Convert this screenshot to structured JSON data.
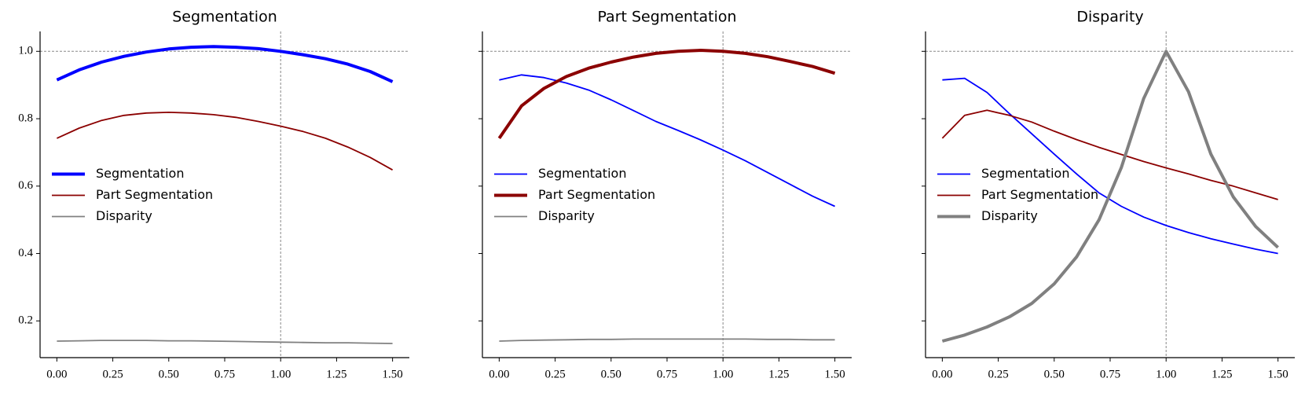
{
  "chart_data": [
    {
      "type": "line",
      "title": "Segmentation",
      "x": [
        0,
        0.1,
        0.2,
        0.3,
        0.4,
        0.5,
        0.6,
        0.7,
        0.8,
        0.9,
        1.0,
        1.1,
        1.2,
        1.3,
        1.4,
        1.5
      ],
      "series": [
        {
          "name": "Segmentation",
          "color": "#0000ff",
          "linewidth": 4,
          "values": [
            0.915,
            0.945,
            0.968,
            0.985,
            0.998,
            1.007,
            1.012,
            1.014,
            1.012,
            1.008,
            1.0,
            0.99,
            0.978,
            0.962,
            0.94,
            0.91
          ]
        },
        {
          "name": "Part Segmentation",
          "color": "#8b0000",
          "linewidth": 1.8,
          "values": [
            0.742,
            0.772,
            0.795,
            0.81,
            0.817,
            0.819,
            0.817,
            0.812,
            0.804,
            0.792,
            0.778,
            0.762,
            0.742,
            0.716,
            0.685,
            0.648
          ]
        },
        {
          "name": "Disparity",
          "color": "#808080",
          "linewidth": 1.8,
          "values": [
            0.14,
            0.141,
            0.142,
            0.142,
            0.142,
            0.141,
            0.141,
            0.14,
            0.139,
            0.138,
            0.137,
            0.136,
            0.135,
            0.135,
            0.134,
            0.133
          ]
        }
      ],
      "xlim": [
        -0.075,
        1.575
      ],
      "ylim": [
        0.091,
        1.059
      ],
      "xticks": [
        {
          "value": 0,
          "label": "0.00"
        },
        {
          "value": 0.25,
          "label": "0.25"
        },
        {
          "value": 0.5,
          "label": "0.50"
        },
        {
          "value": 0.75,
          "label": "0.75"
        },
        {
          "value": 1.0,
          "label": "1.00"
        },
        {
          "value": 1.25,
          "label": "1.25"
        },
        {
          "value": 1.5,
          "label": "1.50"
        }
      ],
      "yticks": [
        0.2,
        0.4,
        0.6,
        0.8,
        {
          "value": 1.0,
          "label": "1.0"
        }
      ],
      "hline": 1.0,
      "vline": 1.0,
      "legend": "center left"
    },
    {
      "type": "line",
      "title": "Part Segmentation",
      "x": [
        0,
        0.1,
        0.2,
        0.3,
        0.4,
        0.5,
        0.6,
        0.7,
        0.8,
        0.9,
        1.0,
        1.1,
        1.2,
        1.3,
        1.4,
        1.5
      ],
      "series": [
        {
          "name": "Segmentation",
          "color": "#0000ff",
          "linewidth": 1.8,
          "values": [
            0.915,
            0.93,
            0.922,
            0.906,
            0.885,
            0.856,
            0.824,
            0.792,
            0.765,
            0.737,
            0.707,
            0.675,
            0.64,
            0.605,
            0.57,
            0.54
          ]
        },
        {
          "name": "Part Segmentation",
          "color": "#8b0000",
          "linewidth": 4,
          "values": [
            0.742,
            0.838,
            0.89,
            0.925,
            0.95,
            0.968,
            0.983,
            0.994,
            1.0,
            1.003,
            1.0,
            0.994,
            0.984,
            0.97,
            0.955,
            0.935
          ]
        },
        {
          "name": "Disparity",
          "color": "#808080",
          "linewidth": 1.8,
          "values": [
            0.14,
            0.142,
            0.143,
            0.144,
            0.145,
            0.145,
            0.146,
            0.146,
            0.146,
            0.146,
            0.146,
            0.146,
            0.145,
            0.145,
            0.144,
            0.144
          ]
        }
      ],
      "xlim": [
        -0.075,
        1.575
      ],
      "ylim": [
        0.091,
        1.059
      ],
      "xticks": [
        {
          "value": 0,
          "label": "0.00"
        },
        {
          "value": 0.25,
          "label": "0.25"
        },
        {
          "value": 0.5,
          "label": "0.50"
        },
        {
          "value": 0.75,
          "label": "0.75"
        },
        {
          "value": 1.0,
          "label": "1.00"
        },
        {
          "value": 1.25,
          "label": "1.25"
        },
        {
          "value": 1.5,
          "label": "1.50"
        }
      ],
      "yticks": [
        0.2,
        0.4,
        0.6,
        0.8,
        1.0
      ],
      "hline": 1.0,
      "vline": 1.0,
      "legend": "center left"
    },
    {
      "type": "line",
      "title": "Disparity",
      "x": [
        0,
        0.1,
        0.2,
        0.3,
        0.4,
        0.5,
        0.6,
        0.7,
        0.8,
        0.9,
        1.0,
        1.1,
        1.2,
        1.3,
        1.4,
        1.5
      ],
      "series": [
        {
          "name": "Segmentation",
          "color": "#0000ff",
          "linewidth": 1.8,
          "values": [
            0.915,
            0.92,
            0.878,
            0.815,
            0.755,
            0.695,
            0.636,
            0.58,
            0.54,
            0.508,
            0.483,
            0.462,
            0.444,
            0.428,
            0.413,
            0.4
          ]
        },
        {
          "name": "Part Segmentation",
          "color": "#8b0000",
          "linewidth": 1.8,
          "values": [
            0.742,
            0.81,
            0.825,
            0.81,
            0.79,
            0.763,
            0.738,
            0.715,
            0.694,
            0.673,
            0.654,
            0.636,
            0.617,
            0.6,
            0.58,
            0.56
          ]
        },
        {
          "name": "Disparity",
          "color": "#808080",
          "linewidth": 4,
          "values": [
            0.14,
            0.158,
            0.182,
            0.212,
            0.252,
            0.31,
            0.39,
            0.5,
            0.655,
            0.86,
            1.0,
            0.88,
            0.695,
            0.568,
            0.48,
            0.418
          ]
        }
      ],
      "xlim": [
        -0.075,
        1.575
      ],
      "ylim": [
        0.091,
        1.059
      ],
      "xticks": [
        {
          "value": 0,
          "label": "0.00"
        },
        {
          "value": 0.25,
          "label": "0.25"
        },
        {
          "value": 0.5,
          "label": "0.50"
        },
        {
          "value": 0.75,
          "label": "0.75"
        },
        {
          "value": 1.0,
          "label": "1.00"
        },
        {
          "value": 1.25,
          "label": "1.25"
        },
        {
          "value": 1.5,
          "label": "1.50"
        }
      ],
      "yticks": [
        0.2,
        0.4,
        0.6,
        0.8,
        1.0
      ],
      "hline": 1.0,
      "vline": 1.0,
      "legend": "center left"
    }
  ]
}
